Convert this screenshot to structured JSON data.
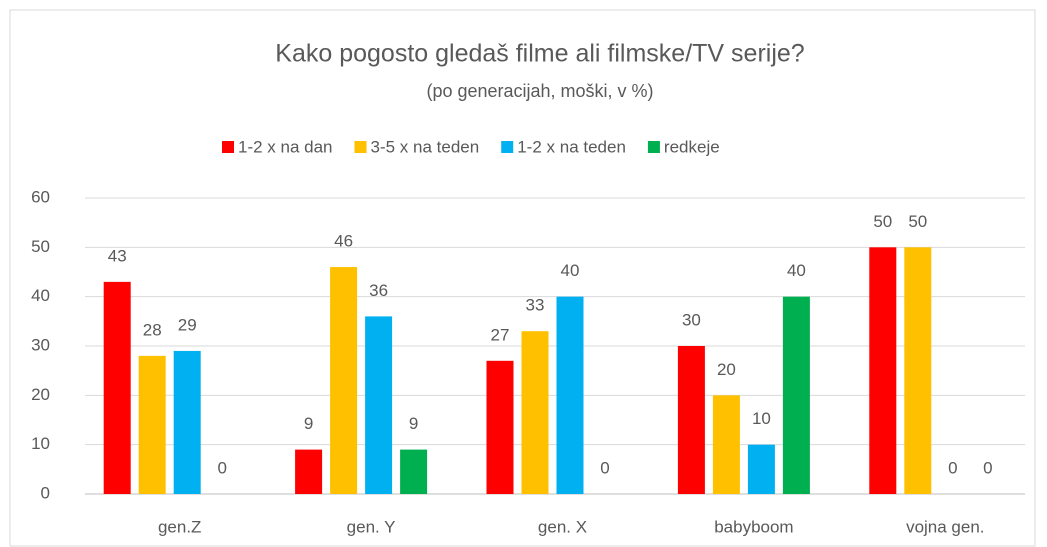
{
  "chart_data": {
    "type": "bar",
    "title": "Kako pogosto gledaš filme ali filmske/TV serije?",
    "subtitle": "(po generacijah, moški, v %)",
    "categories": [
      "gen.Z",
      "gen. Y",
      "gen. X",
      "babyboom",
      "vojna gen."
    ],
    "series": [
      {
        "name": "1-2 x na dan",
        "color": "#ff0000",
        "values": [
          43,
          9,
          27,
          30,
          50
        ]
      },
      {
        "name": "3-5 x na teden",
        "color": "#ffc000",
        "values": [
          28,
          46,
          33,
          20,
          50
        ]
      },
      {
        "name": "1-2 x na teden",
        "color": "#00b0f0",
        "values": [
          29,
          36,
          40,
          10,
          0
        ]
      },
      {
        "name": "redkeje",
        "color": "#00b050",
        "values": [
          0,
          9,
          0,
          40,
          0
        ]
      }
    ],
    "ylim": [
      0,
      60
    ],
    "yticks": [
      0,
      10,
      20,
      30,
      40,
      50,
      60
    ],
    "grid": true,
    "legend": "top"
  }
}
